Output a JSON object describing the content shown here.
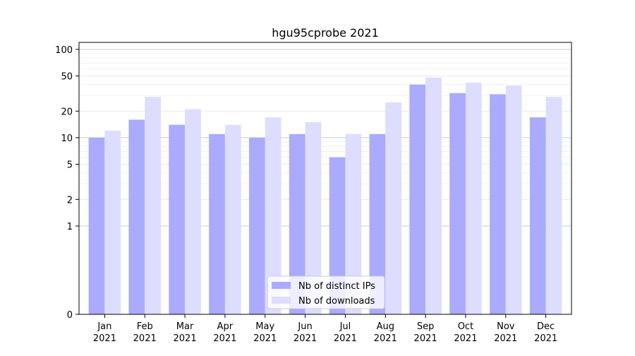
{
  "chart_data": {
    "type": "bar",
    "title": "hgu95cprobe 2021",
    "xlabel": "",
    "ylabel": "",
    "y_scale": "symlog",
    "ylim": [
      0,
      120
    ],
    "categories": [
      [
        "Jan",
        "2021"
      ],
      [
        "Feb",
        "2021"
      ],
      [
        "Mar",
        "2021"
      ],
      [
        "Apr",
        "2021"
      ],
      [
        "May",
        "2021"
      ],
      [
        "Jun",
        "2021"
      ],
      [
        "Jul",
        "2021"
      ],
      [
        "Aug",
        "2021"
      ],
      [
        "Sep",
        "2021"
      ],
      [
        "Oct",
        "2021"
      ],
      [
        "Nov",
        "2021"
      ],
      [
        "Dec",
        "2021"
      ]
    ],
    "y_ticks": [
      0,
      1,
      2,
      5,
      10,
      20,
      50,
      100
    ],
    "y_tick_labels": [
      "0",
      "1",
      "2",
      "5",
      "10",
      "20",
      "50",
      "100"
    ],
    "grid": true,
    "legend_position": "bottom-center",
    "series": [
      {
        "name": "Nb of distinct IPs",
        "color": "#aaaaff",
        "values": [
          10,
          16,
          14,
          11,
          10,
          11,
          6,
          11,
          40,
          32,
          31,
          17
        ]
      },
      {
        "name": "Nb of downloads",
        "color": "#ddddff",
        "values": [
          12,
          29,
          21,
          14,
          17,
          15,
          11,
          25,
          48,
          42,
          39,
          29
        ]
      }
    ]
  }
}
